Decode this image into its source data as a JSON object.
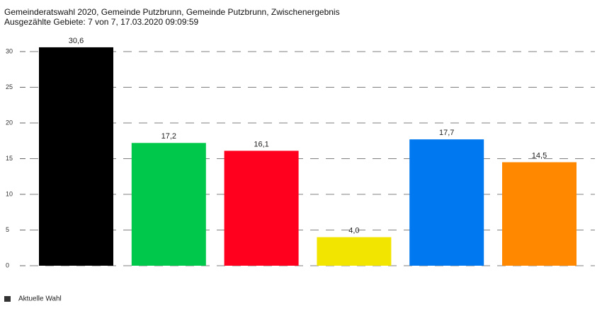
{
  "chart_data": {
    "type": "bar",
    "title": "Gemeinderatswahl 2020, Gemeinde Putzbrunn, Gemeinde Putzbrunn, Zwischenergebnis",
    "subtitle": "Ausgezählte Gebiete: 7 von 7, 17.03.2020 09:09:59",
    "categories": [
      null,
      null,
      null,
      null,
      null,
      null
    ],
    "series": [
      {
        "name": "Aktuelle Wahl",
        "color": "#333333",
        "values": [
          30.6,
          17.2,
          16.1,
          4.0,
          17.7,
          14.5
        ],
        "value_labels": [
          "30,6",
          "17,2",
          "16,1",
          "4,0",
          "17,7",
          "14,5"
        ],
        "colors": [
          "#000000",
          "#00c84a",
          "#ff001e",
          "#f2e600",
          "#0078f0",
          "#ff8800"
        ]
      }
    ],
    "ylim": [
      0,
      30
    ],
    "yticks": [
      0,
      5,
      10,
      15,
      20,
      25,
      30
    ],
    "grid": true
  }
}
